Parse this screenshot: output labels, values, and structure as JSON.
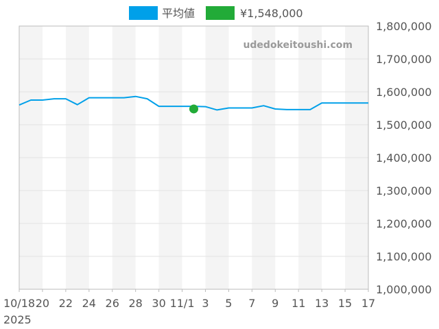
{
  "chart_data": {
    "type": "line",
    "legend": [
      {
        "label": "平均値",
        "color": "#00a0e9"
      },
      {
        "label": "¥1,548,000",
        "color": "#22ab38"
      }
    ],
    "watermark": "udedokeitoushi.com",
    "y_ticks": [
      "1,000,000",
      "1,100,000",
      "1,200,000",
      "1,300,000",
      "1,400,000",
      "1,500,000",
      "1,600,000",
      "1,700,000",
      "1,800,000"
    ],
    "ylim": [
      1000000,
      1800000
    ],
    "xlim": [
      "2025-10-18",
      "2025-11-17"
    ],
    "x_ticks": [
      {
        "date": "2025-10-18",
        "label": "10/18"
      },
      {
        "date": "2025-10-20",
        "label": "20"
      },
      {
        "date": "2025-10-22",
        "label": "22"
      },
      {
        "date": "2025-10-24",
        "label": "24"
      },
      {
        "date": "2025-10-26",
        "label": "26"
      },
      {
        "date": "2025-10-28",
        "label": "28"
      },
      {
        "date": "2025-10-30",
        "label": "30"
      },
      {
        "date": "2025-11-01",
        "label": "11/1"
      },
      {
        "date": "2025-11-03",
        "label": "3"
      },
      {
        "date": "2025-11-05",
        "label": "5"
      },
      {
        "date": "2025-11-07",
        "label": "7"
      },
      {
        "date": "2025-11-09",
        "label": "9"
      },
      {
        "date": "2025-11-11",
        "label": "11"
      },
      {
        "date": "2025-11-13",
        "label": "13"
      },
      {
        "date": "2025-11-15",
        "label": "15"
      },
      {
        "date": "2025-11-17",
        "label": "17"
      }
    ],
    "year_label": "2025",
    "series": [
      {
        "name": "平均値",
        "color": "#00a0e9",
        "x": [
          "2025-10-18",
          "2025-10-19",
          "2025-10-20",
          "2025-10-21",
          "2025-10-22",
          "2025-10-23",
          "2025-10-24",
          "2025-10-25",
          "2025-10-26",
          "2025-10-27",
          "2025-10-28",
          "2025-10-29",
          "2025-10-30",
          "2025-10-31",
          "2025-11-01",
          "2025-11-02",
          "2025-11-03",
          "2025-11-04",
          "2025-11-05",
          "2025-11-06",
          "2025-11-07",
          "2025-11-08",
          "2025-11-09",
          "2025-11-10",
          "2025-11-11",
          "2025-11-12",
          "2025-11-13",
          "2025-11-14",
          "2025-11-15",
          "2025-11-16",
          "2025-11-17"
        ],
        "values": [
          1560000,
          1575000,
          1575000,
          1579000,
          1579000,
          1561000,
          1582000,
          1582000,
          1582000,
          1582000,
          1586000,
          1579000,
          1556000,
          1556000,
          1556000,
          1556000,
          1555000,
          1545000,
          1551000,
          1551000,
          1551000,
          1558000,
          1548000,
          1546000,
          1546000,
          1546000,
          1566000,
          1566000,
          1566000,
          1566000,
          1566000
        ]
      }
    ],
    "points": [
      {
        "name": "¥1,548,000",
        "color": "#22ab38",
        "x": "2025-11-02",
        "value": 1548000
      }
    ]
  }
}
